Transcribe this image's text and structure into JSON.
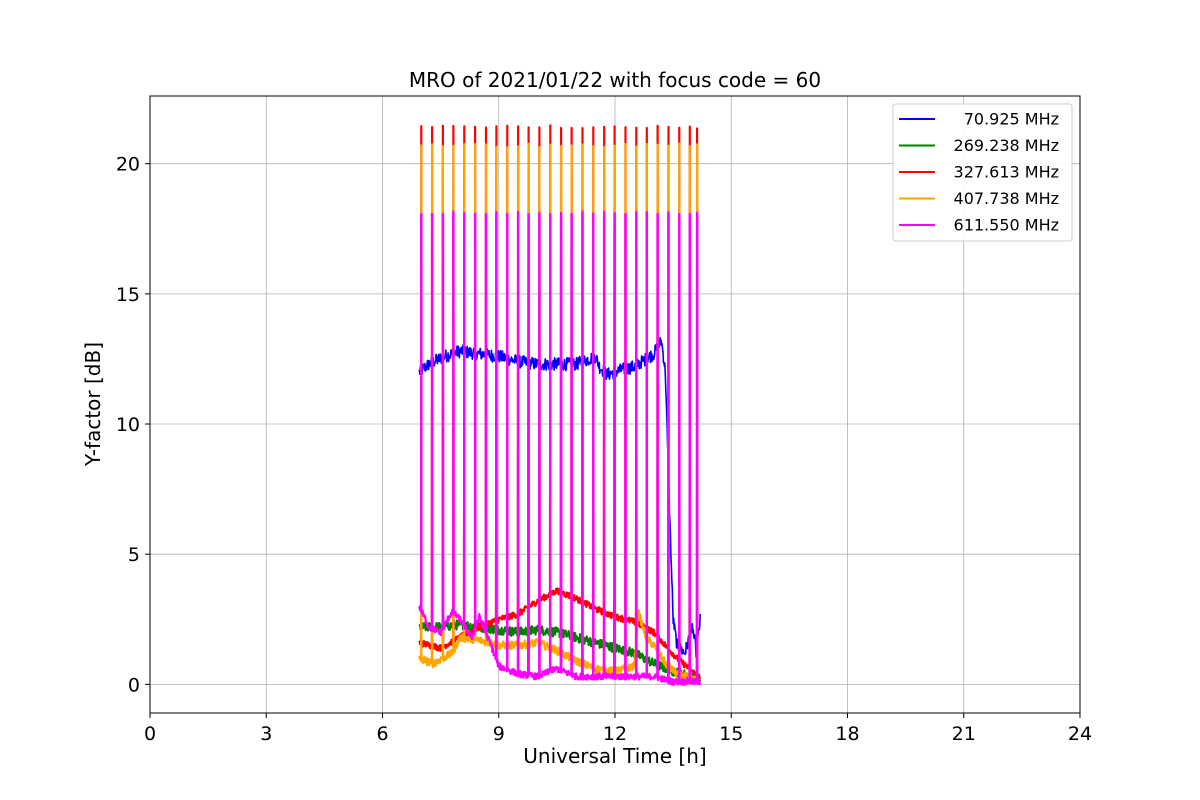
{
  "chart_data": {
    "type": "line",
    "title": "MRO of 2021/01/22 with focus code = 60",
    "xlabel": "Universal Time [h]",
    "ylabel": "Y-factor [dB]",
    "xlim": [
      0,
      24
    ],
    "ylim": [
      -1.1,
      22.6
    ],
    "xticks": [
      0,
      3,
      6,
      9,
      12,
      15,
      18,
      21,
      24
    ],
    "yticks": [
      0,
      5,
      10,
      15,
      20
    ],
    "grid": true,
    "legend_position": "top-right",
    "spike_times": [
      7.0,
      7.28,
      7.56,
      7.83,
      8.11,
      8.39,
      8.67,
      8.94,
      9.22,
      9.5,
      9.77,
      10.05,
      10.33,
      10.61,
      10.88,
      11.16,
      11.44,
      11.72,
      11.99,
      12.27,
      12.55,
      12.82,
      13.1,
      13.38,
      13.66,
      13.93,
      14.12
    ],
    "series": [
      {
        "name": "70.925 MHz",
        "color": "#0000ff",
        "noise": 0.25,
        "x": [
          6.95,
          7.2,
          7.6,
          8.0,
          8.5,
          9.0,
          9.5,
          10.0,
          10.5,
          11.0,
          11.5,
          11.6,
          11.8,
          12.2,
          12.5,
          12.8,
          13.0,
          13.2,
          13.3,
          13.4,
          13.5,
          13.6,
          13.8,
          14.0,
          14.1,
          14.2
        ],
        "y": [
          12.0,
          12.3,
          12.6,
          12.8,
          12.7,
          12.6,
          12.4,
          12.3,
          12.3,
          12.3,
          12.6,
          12.2,
          11.9,
          12.1,
          12.2,
          12.5,
          12.7,
          13.2,
          12.0,
          7.0,
          2.5,
          1.5,
          1.2,
          2.2,
          1.2,
          2.5
        ]
      },
      {
        "name": "269.238 MHz",
        "color": "#008000",
        "noise": 0.18,
        "x": [
          6.95,
          7.5,
          8.0,
          8.5,
          9.0,
          9.5,
          10.0,
          10.5,
          11.0,
          11.5,
          12.0,
          12.5,
          13.0,
          13.5,
          14.0,
          14.2
        ],
        "y": [
          2.2,
          2.2,
          2.3,
          2.2,
          2.1,
          2.0,
          2.1,
          2.0,
          1.8,
          1.6,
          1.4,
          1.2,
          0.8,
          0.5,
          0.3,
          0.2
        ]
      },
      {
        "name": "327.613 MHz",
        "color": "#ff0000",
        "noise": 0.12,
        "x": [
          6.95,
          7.5,
          8.0,
          8.5,
          9.0,
          9.5,
          10.0,
          10.5,
          11.0,
          11.5,
          12.0,
          12.5,
          13.0,
          13.3,
          13.6,
          14.0,
          14.2
        ],
        "y": [
          1.6,
          1.4,
          1.8,
          2.2,
          2.5,
          2.7,
          3.2,
          3.6,
          3.3,
          2.9,
          2.6,
          2.4,
          2.0,
          1.5,
          1.0,
          0.5,
          0.2
        ]
      },
      {
        "name": "407.738 MHz",
        "color": "#ffa500",
        "noise": 0.15,
        "x": [
          6.95,
          7.3,
          7.8,
          8.0,
          8.5,
          9.0,
          9.5,
          10.0,
          10.5,
          11.0,
          11.5,
          12.0,
          12.5,
          12.6,
          12.8,
          13.0,
          13.3,
          13.6,
          14.0,
          14.2
        ],
        "y": [
          1.0,
          0.8,
          1.2,
          1.8,
          1.7,
          1.5,
          1.5,
          1.6,
          1.3,
          0.9,
          0.6,
          0.5,
          0.7,
          2.8,
          1.8,
          1.5,
          0.8,
          0.4,
          0.2,
          0.1
        ]
      },
      {
        "name": "611.550 MHz",
        "color": "#ff00ff",
        "noise": 0.12,
        "x": [
          6.95,
          7.2,
          7.5,
          7.8,
          8.0,
          8.3,
          8.5,
          8.8,
          9.0,
          9.5,
          10.0,
          10.5,
          11.0,
          11.5,
          12.0,
          12.5,
          13.0,
          13.5,
          14.0,
          14.2
        ],
        "y": [
          3.0,
          2.2,
          2.0,
          2.8,
          2.5,
          1.8,
          2.6,
          1.5,
          0.7,
          0.4,
          0.3,
          0.6,
          0.3,
          0.3,
          0.3,
          0.3,
          0.3,
          0.1,
          0.1,
          0.1
        ]
      }
    ],
    "spike_peaks": [
      {
        "series": "327.613 MHz",
        "color": "#ff0000",
        "value": 21.4
      },
      {
        "series": "407.738 MHz",
        "color": "#ffa500",
        "value": 20.7
      },
      {
        "series": "611.550 MHz",
        "color": "#ff00ff",
        "value": 18.1
      }
    ]
  }
}
